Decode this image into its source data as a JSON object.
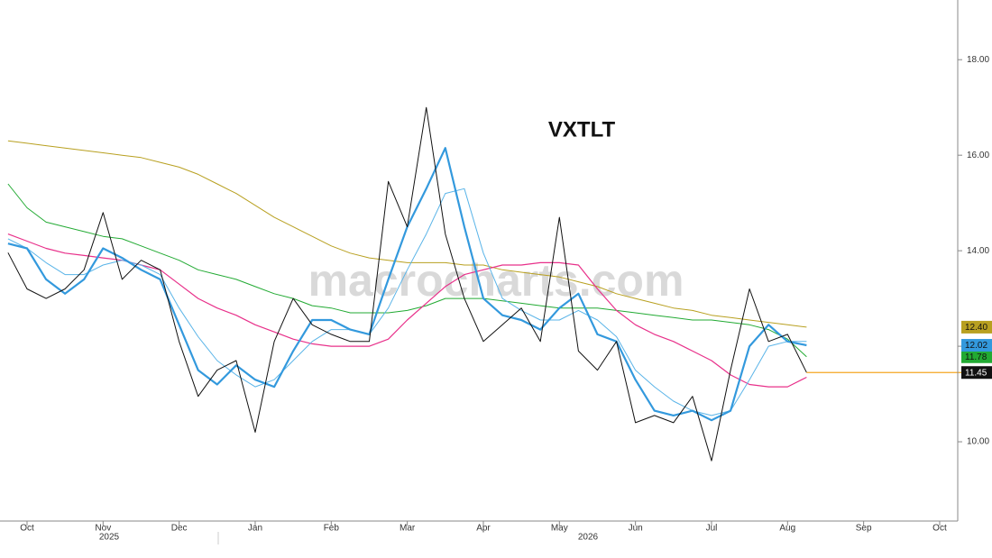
{
  "chart_data": {
    "type": "line",
    "title": "VXTLT",
    "watermark": "macrocharts.com",
    "categories": [
      null,
      "Oct",
      null,
      null,
      null,
      "Nov",
      null,
      null,
      null,
      "Dec",
      null,
      null,
      null,
      "Jan",
      null,
      null,
      null,
      "Feb",
      null,
      null,
      null,
      "Mar",
      null,
      null,
      null,
      "Apr",
      null,
      null,
      null,
      "May",
      null,
      null,
      null,
      "Jun",
      null,
      null,
      null,
      "Jul",
      null,
      null,
      null,
      "Aug",
      null,
      null,
      null,
      "Sep",
      null,
      null,
      null,
      "Oct"
    ],
    "years": [
      "2025",
      "2026"
    ],
    "ylim": [
      8.34,
      19.25
    ],
    "yticks": [
      {
        "value": 10,
        "label": "10.00"
      },
      {
        "value": 12,
        "label": "12.00"
      },
      {
        "value": 14,
        "label": "14.00"
      },
      {
        "value": 16,
        "label": "16.00"
      },
      {
        "value": 18,
        "label": "18.00"
      }
    ],
    "series": [
      {
        "color": "#b8a020",
        "width": 1,
        "last_label": "12.40",
        "values": [
          16.3,
          16.25,
          16.2,
          16.15,
          16.1,
          16.05,
          16.0,
          15.95,
          15.85,
          15.75,
          15.6,
          15.4,
          15.2,
          14.95,
          14.7,
          14.5,
          14.3,
          14.1,
          13.95,
          13.85,
          13.8,
          13.75,
          13.75,
          13.75,
          13.7,
          13.7,
          13.6,
          13.55,
          13.5,
          13.45,
          13.35,
          13.25,
          13.1,
          13.0,
          12.9,
          12.8,
          12.75,
          12.65,
          12.6,
          12.55,
          12.5,
          12.45,
          12.4,
          null,
          null,
          null,
          null,
          null,
          null,
          null
        ]
      },
      {
        "color": "#22aa33",
        "width": 1,
        "last_label": "11.78",
        "values": [
          15.4,
          14.9,
          14.6,
          14.5,
          14.4,
          14.3,
          14.25,
          14.1,
          13.95,
          13.8,
          13.6,
          13.5,
          13.4,
          13.25,
          13.1,
          13.0,
          12.85,
          12.8,
          12.7,
          12.7,
          12.7,
          12.75,
          12.85,
          13.0,
          13.0,
          13.0,
          12.95,
          12.9,
          12.85,
          12.8,
          12.8,
          12.8,
          12.75,
          12.7,
          12.65,
          12.6,
          12.55,
          12.55,
          12.5,
          12.45,
          12.35,
          12.15,
          11.78,
          null,
          null,
          null,
          null,
          null,
          null,
          null
        ]
      },
      {
        "color": "#e8308a",
        "width": 1.2,
        "values": [
          14.35,
          14.2,
          14.05,
          13.95,
          13.9,
          13.85,
          13.8,
          13.7,
          13.6,
          13.3,
          13.0,
          12.8,
          12.65,
          12.45,
          12.3,
          12.15,
          12.05,
          12.0,
          12.0,
          12.0,
          12.15,
          12.55,
          12.9,
          13.25,
          13.5,
          13.6,
          13.7,
          13.7,
          13.75,
          13.75,
          13.7,
          13.2,
          12.75,
          12.45,
          12.25,
          12.1,
          11.9,
          11.7,
          11.4,
          11.2,
          11.15,
          11.15,
          11.35,
          null,
          null,
          null,
          null,
          null,
          null,
          null
        ]
      },
      {
        "color": "#5ab4e8",
        "width": 1,
        "values": [
          14.25,
          14.05,
          13.75,
          13.5,
          13.5,
          13.7,
          13.8,
          13.7,
          13.5,
          12.8,
          12.2,
          11.7,
          11.4,
          11.15,
          11.3,
          11.7,
          12.1,
          12.35,
          12.35,
          12.25,
          12.8,
          13.6,
          14.35,
          15.2,
          15.3,
          13.95,
          13.0,
          12.75,
          12.55,
          12.55,
          12.75,
          12.55,
          12.2,
          11.5,
          11.15,
          10.85,
          10.65,
          10.55,
          10.65,
          11.3,
          12.0,
          12.1,
          12.1,
          null,
          null,
          null,
          null,
          null,
          null,
          null
        ]
      },
      {
        "color": "#3399dd",
        "width": 2.2,
        "last_label": "12.02",
        "values": [
          14.15,
          14.05,
          13.4,
          13.1,
          13.4,
          14.05,
          13.85,
          13.6,
          13.4,
          12.45,
          11.5,
          11.2,
          11.6,
          11.3,
          11.15,
          11.9,
          12.55,
          12.55,
          12.35,
          12.25,
          13.4,
          14.5,
          15.3,
          16.15,
          14.5,
          13.0,
          12.65,
          12.55,
          12.35,
          12.8,
          13.1,
          12.25,
          12.1,
          11.3,
          10.65,
          10.55,
          10.65,
          10.45,
          10.65,
          12.0,
          12.45,
          12.1,
          12.02,
          null,
          null,
          null,
          null,
          null,
          null,
          null
        ]
      },
      {
        "color": "#111111",
        "width": 1,
        "last_label": "11.45",
        "last_value_line_color": "#f5a623",
        "values": [
          13.96,
          13.2,
          13.0,
          13.2,
          13.6,
          14.8,
          13.4,
          13.8,
          13.6,
          12.1,
          10.95,
          11.5,
          11.7,
          10.2,
          12.1,
          13.0,
          12.45,
          12.25,
          12.1,
          12.1,
          15.45,
          14.5,
          17.0,
          14.35,
          13.0,
          12.1,
          12.45,
          12.8,
          12.1,
          14.7,
          11.9,
          11.5,
          12.1,
          10.4,
          10.55,
          10.4,
          10.95,
          9.6,
          11.5,
          13.2,
          12.1,
          12.25,
          11.45,
          null,
          null,
          null,
          null,
          null,
          null,
          null
        ]
      }
    ]
  }
}
